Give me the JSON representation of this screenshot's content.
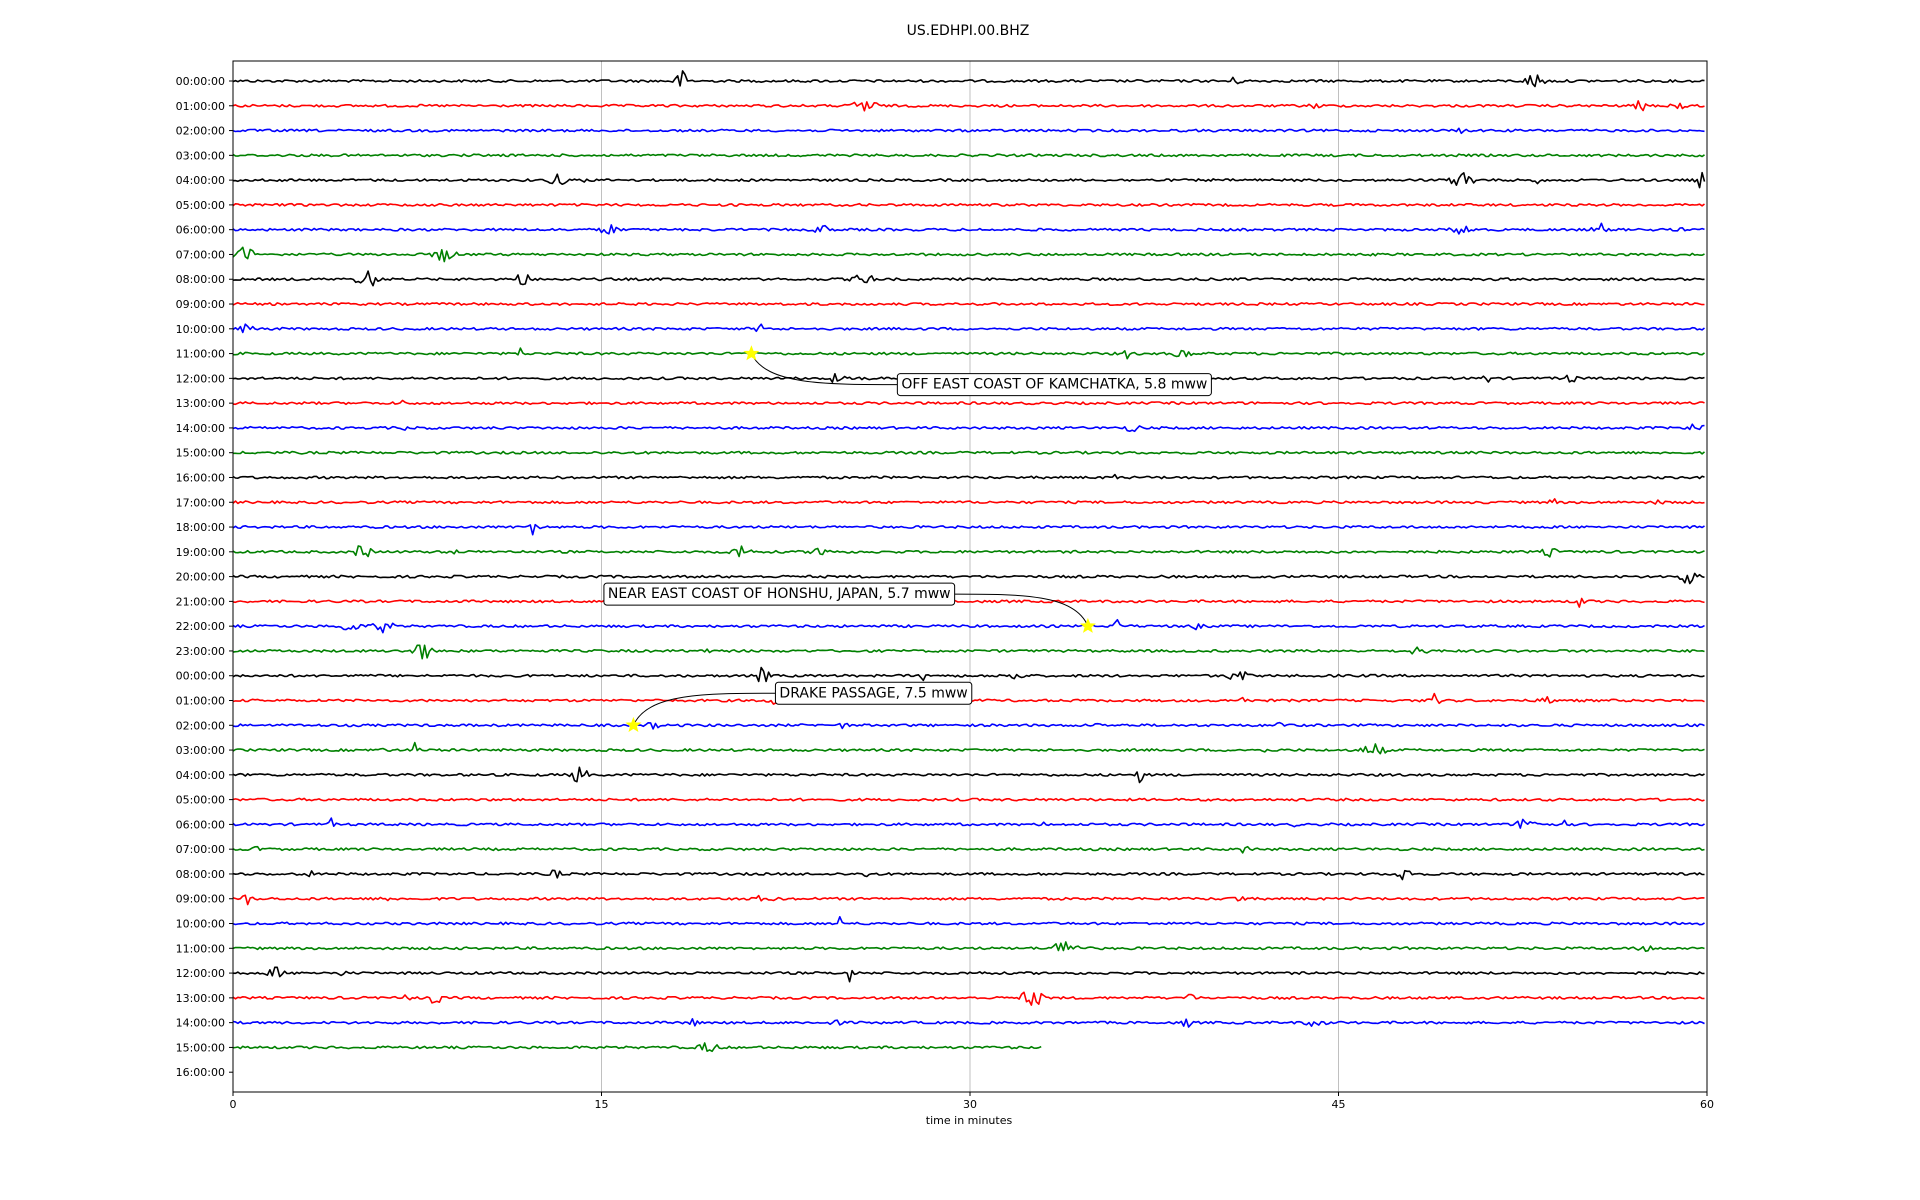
{
  "chart_data": {
    "type": "line",
    "title": "US.EDHPI.00.BHZ",
    "xlabel": "time in minutes",
    "xlim": [
      0,
      60
    ],
    "x_ticks": [
      "0",
      "15",
      "30",
      "45",
      "60"
    ],
    "y_labels": [
      "00:00:00",
      "01:00:00",
      "02:00:00",
      "03:00:00",
      "04:00:00",
      "05:00:00",
      "06:00:00",
      "07:00:00",
      "08:00:00",
      "09:00:00",
      "10:00:00",
      "11:00:00",
      "12:00:00",
      "13:00:00",
      "14:00:00",
      "15:00:00",
      "16:00:00",
      "17:00:00",
      "18:00:00",
      "19:00:00",
      "20:00:00",
      "21:00:00",
      "22:00:00",
      "23:00:00",
      "00:00:00",
      "01:00:00",
      "02:00:00",
      "03:00:00",
      "04:00:00",
      "05:00:00",
      "06:00:00",
      "07:00:00",
      "08:00:00",
      "09:00:00",
      "10:00:00",
      "11:00:00",
      "12:00:00",
      "13:00:00",
      "14:00:00",
      "15:00:00",
      "16:00:00"
    ],
    "trace_colors": [
      "#000000",
      "#ff0000",
      "#0000ff",
      "#008000"
    ],
    "vertical_grid": true,
    "last_trace_end_minute": 33.0,
    "events": [
      {
        "label": "OFF EAST COAST OF KAMCHATKA, 5.8 mww",
        "row": 11,
        "minute": 21.1
      },
      {
        "label": "NEAR EAST COAST OF HONSHU, JAPAN, 5.7 mww",
        "row": 22,
        "minute": 34.8
      },
      {
        "label": "DRAKE PASSAGE, 7.5 mww",
        "row": 26,
        "minute": 16.3
      }
    ],
    "marker_color": "#ffff00"
  }
}
